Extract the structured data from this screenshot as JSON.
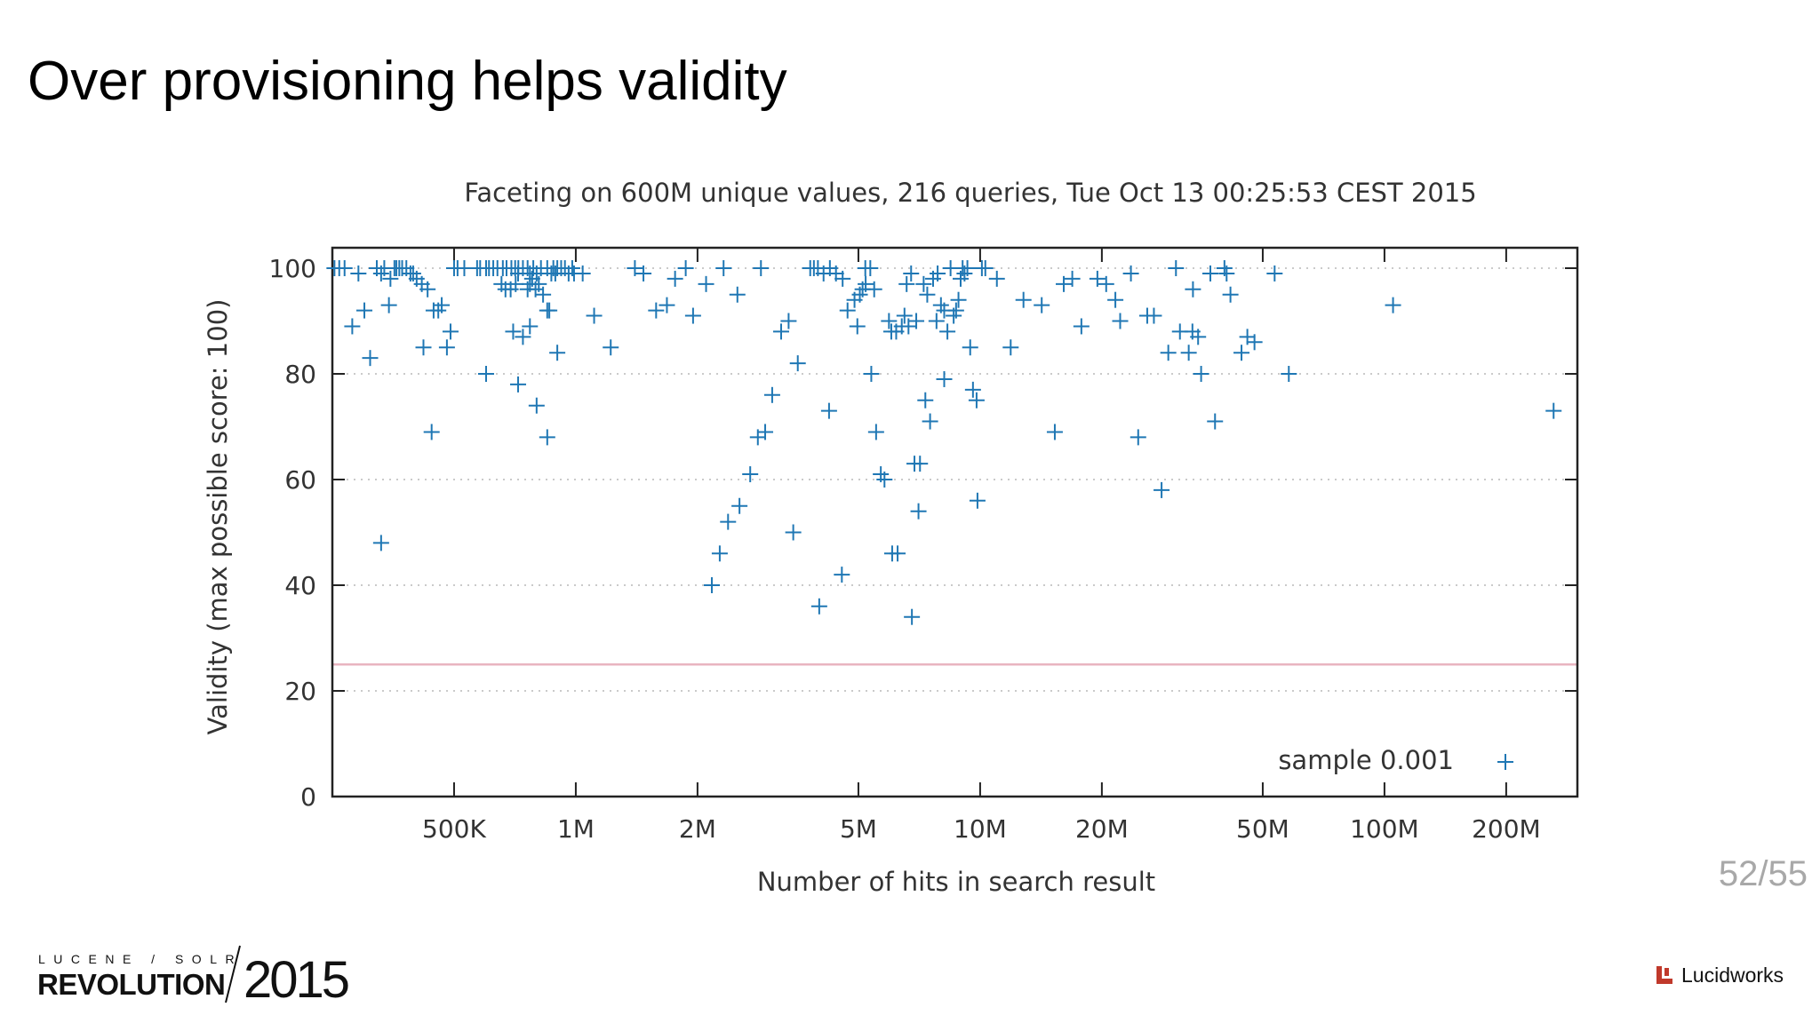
{
  "slide": {
    "title": "Over provisioning helps validity",
    "counter": "52/55"
  },
  "footer": {
    "conference_small": "LUCENE / SOLR",
    "conference_big": "REVOLUTION",
    "conference_year": "2015",
    "brand": "Lucidworks",
    "brand_color": "#c0392b"
  },
  "chart_data": {
    "type": "scatter",
    "title": "Faceting on 600M unique values, 216 queries, Tue Oct 13 00:25:53 CEST 2015",
    "xlabel": "Number of hits in search result",
    "ylabel": "Validity (max possible score: 100)",
    "x_scale": "log",
    "xlim": [
      250000,
      300000000
    ],
    "ylim": [
      0,
      100
    ],
    "x_ticks": [
      {
        "value": 500000,
        "label": "500K"
      },
      {
        "value": 1000000,
        "label": "1M"
      },
      {
        "value": 2000000,
        "label": "2M"
      },
      {
        "value": 5000000,
        "label": "5M"
      },
      {
        "value": 10000000,
        "label": "10M"
      },
      {
        "value": 20000000,
        "label": "20M"
      },
      {
        "value": 50000000,
        "label": "50M"
      },
      {
        "value": 100000000,
        "label": "100M"
      },
      {
        "value": 200000000,
        "label": "200M"
      }
    ],
    "y_ticks": [
      0,
      20,
      40,
      60,
      80,
      100
    ],
    "grid": true,
    "reference_line": {
      "y": 25,
      "color": "#e8b4c0"
    },
    "legend": "bottom-right",
    "series": [
      {
        "name": "sample 0.001",
        "color": "#1f77b4",
        "marker": "+",
        "points": [
          [
            253000,
            100
          ],
          [
            260000,
            100
          ],
          [
            268000,
            100
          ],
          [
            290000,
            99
          ],
          [
            322000,
            100
          ],
          [
            330000,
            99
          ],
          [
            336000,
            100
          ],
          [
            348000,
            98
          ],
          [
            356000,
            100
          ],
          [
            360000,
            100
          ],
          [
            366000,
            100
          ],
          [
            372000,
            100
          ],
          [
            381000,
            100
          ],
          [
            390000,
            99
          ],
          [
            396000,
            99
          ],
          [
            404000,
            98
          ],
          [
            416000,
            97
          ],
          [
            430000,
            96
          ],
          [
            445000,
            92
          ],
          [
            457000,
            92
          ],
          [
            466000,
            93
          ],
          [
            500000,
            100
          ],
          [
            510000,
            100
          ],
          [
            530000,
            100
          ],
          [
            570000,
            100
          ],
          [
            580000,
            100
          ],
          [
            600000,
            100
          ],
          [
            610000,
            100
          ],
          [
            625000,
            100
          ],
          [
            640000,
            100
          ],
          [
            660000,
            100
          ],
          [
            674000,
            100
          ],
          [
            693000,
            100
          ],
          [
            708000,
            100
          ],
          [
            721000,
            100
          ],
          [
            740000,
            100
          ],
          [
            760000,
            100
          ],
          [
            770000,
            99
          ],
          [
            785000,
            100
          ],
          [
            800000,
            99
          ],
          [
            820000,
            100
          ],
          [
            850000,
            100
          ],
          [
            870000,
            99
          ],
          [
            880000,
            100
          ],
          [
            890000,
            99
          ],
          [
            900000,
            100
          ],
          [
            920000,
            100
          ],
          [
            940000,
            100
          ],
          [
            960000,
            99
          ],
          [
            980000,
            100
          ],
          [
            990000,
            99
          ],
          [
            655000,
            97
          ],
          [
            670000,
            96
          ],
          [
            720000,
            99
          ],
          [
            760000,
            96
          ],
          [
            770000,
            97
          ],
          [
            780000,
            98
          ],
          [
            795000,
            96
          ],
          [
            810000,
            97
          ],
          [
            830000,
            95
          ],
          [
            860000,
            92
          ],
          [
            850000,
            92
          ],
          [
            280000,
            89
          ],
          [
            300000,
            92
          ],
          [
            310000,
            83
          ],
          [
            330000,
            48
          ],
          [
            345000,
            93
          ],
          [
            420000,
            85
          ],
          [
            440000,
            69
          ],
          [
            480000,
            85
          ],
          [
            490000,
            88
          ],
          [
            600000,
            80
          ],
          [
            700000,
            88
          ],
          [
            720000,
            78
          ],
          [
            740000,
            87
          ],
          [
            770000,
            89
          ],
          [
            800000,
            74
          ],
          [
            850000,
            68
          ],
          [
            900000,
            84
          ],
          [
            1110000,
            91
          ],
          [
            1220000,
            85
          ],
          [
            1400000,
            100
          ],
          [
            1470000,
            99
          ],
          [
            1580000,
            92
          ],
          [
            1680000,
            93
          ],
          [
            1760000,
            98
          ],
          [
            1870000,
            100
          ],
          [
            1950000,
            91
          ],
          [
            2100000,
            97
          ],
          [
            2320000,
            100
          ],
          [
            2510000,
            95
          ],
          [
            2870000,
            100
          ],
          [
            2170000,
            40
          ],
          [
            2270000,
            46
          ],
          [
            2380000,
            52
          ],
          [
            2540000,
            55
          ],
          [
            2700000,
            61
          ],
          [
            2820000,
            68
          ],
          [
            2940000,
            69
          ],
          [
            3060000,
            76
          ],
          [
            3220000,
            88
          ],
          [
            3360000,
            90
          ],
          [
            3450000,
            50
          ],
          [
            3540000,
            82
          ],
          [
            3800000,
            100
          ],
          [
            3880000,
            100
          ],
          [
            3970000,
            100
          ],
          [
            4100000,
            99
          ],
          [
            4250000,
            100
          ],
          [
            4400000,
            99
          ],
          [
            4570000,
            98
          ],
          [
            4230000,
            73
          ],
          [
            4000000,
            36
          ],
          [
            4550000,
            42
          ],
          [
            4700000,
            92
          ],
          [
            4890000,
            94
          ],
          [
            5040000,
            95
          ],
          [
            5120000,
            96
          ],
          [
            5200000,
            100
          ],
          [
            5350000,
            100
          ],
          [
            5470000,
            96
          ],
          [
            4970000,
            89
          ],
          [
            5210000,
            97
          ],
          [
            5380000,
            80
          ],
          [
            5530000,
            69
          ],
          [
            5680000,
            61
          ],
          [
            5800000,
            60
          ],
          [
            5950000,
            90
          ],
          [
            6030000,
            88
          ],
          [
            6200000,
            88
          ],
          [
            6060000,
            46
          ],
          [
            6250000,
            46
          ],
          [
            6400000,
            89
          ],
          [
            6580000,
            97
          ],
          [
            6750000,
            99
          ],
          [
            6500000,
            91
          ],
          [
            6650000,
            89
          ],
          [
            6780000,
            34
          ],
          [
            6950000,
            90
          ],
          [
            6880000,
            63
          ],
          [
            7100000,
            63
          ],
          [
            7040000,
            54
          ],
          [
            7250000,
            97
          ],
          [
            7400000,
            95
          ],
          [
            7320000,
            75
          ],
          [
            7520000,
            71
          ],
          [
            7650000,
            98
          ],
          [
            7800000,
            90
          ],
          [
            7850000,
            99
          ],
          [
            8000000,
            93
          ],
          [
            8150000,
            92
          ],
          [
            8300000,
            88
          ],
          [
            8450000,
            100
          ],
          [
            8600000,
            91
          ],
          [
            8720000,
            92
          ],
          [
            8840000,
            94
          ],
          [
            8950000,
            98
          ],
          [
            9050000,
            100
          ],
          [
            9150000,
            99
          ],
          [
            9300000,
            100
          ],
          [
            9450000,
            85
          ],
          [
            9600000,
            77
          ],
          [
            9800000,
            75
          ],
          [
            10100000,
            100
          ],
          [
            10300000,
            100
          ],
          [
            9850000,
            56
          ],
          [
            8150000,
            79
          ],
          [
            11000000,
            98
          ],
          [
            11900000,
            85
          ],
          [
            12800000,
            94
          ],
          [
            14200000,
            93
          ],
          [
            15300000,
            69
          ],
          [
            16100000,
            97
          ],
          [
            16900000,
            98
          ],
          [
            17800000,
            89
          ],
          [
            19500000,
            98
          ],
          [
            20500000,
            97
          ],
          [
            21600000,
            94
          ],
          [
            22200000,
            90
          ],
          [
            23600000,
            99
          ],
          [
            24600000,
            68
          ],
          [
            25900000,
            91
          ],
          [
            26900000,
            91
          ],
          [
            28100000,
            58
          ],
          [
            29200000,
            84
          ],
          [
            30500000,
            100
          ],
          [
            31200000,
            88
          ],
          [
            32800000,
            84
          ],
          [
            33600000,
            96
          ],
          [
            33500000,
            88
          ],
          [
            34600000,
            87
          ],
          [
            35200000,
            80
          ],
          [
            37100000,
            99
          ],
          [
            38100000,
            71
          ],
          [
            40200000,
            100
          ],
          [
            40700000,
            99
          ],
          [
            41600000,
            95
          ],
          [
            44300000,
            84
          ],
          [
            45800000,
            87
          ],
          [
            47700000,
            86
          ],
          [
            53500000,
            99
          ],
          [
            58000000,
            80
          ],
          [
            105000000,
            93
          ],
          [
            262000000,
            73
          ],
          [
            690000,
            96
          ],
          [
            710000,
            97
          ],
          [
            1040000,
            99
          ]
        ]
      }
    ]
  }
}
